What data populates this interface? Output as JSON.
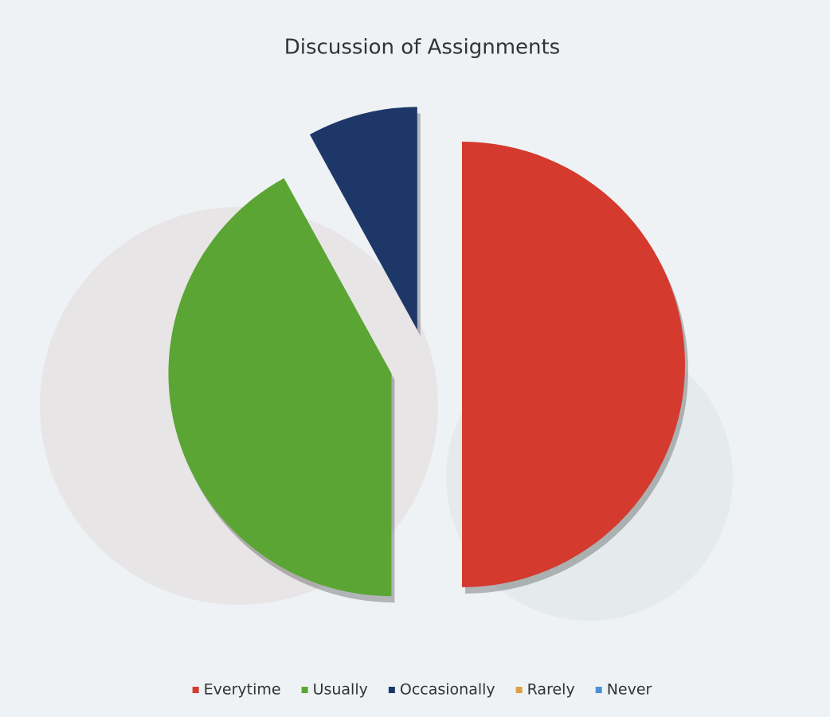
{
  "chart_data": {
    "type": "pie",
    "title": "Discussion of Assignments",
    "categories": [
      "Everytime",
      "Usually",
      "Occasionally",
      "Rarely",
      "Never"
    ],
    "values": [
      50,
      42,
      8,
      0,
      0
    ],
    "colors": [
      "#d43a2e",
      "#5ba534",
      "#1d3769",
      "#e0a042",
      "#4a8fd6"
    ],
    "legend": "bottom"
  }
}
